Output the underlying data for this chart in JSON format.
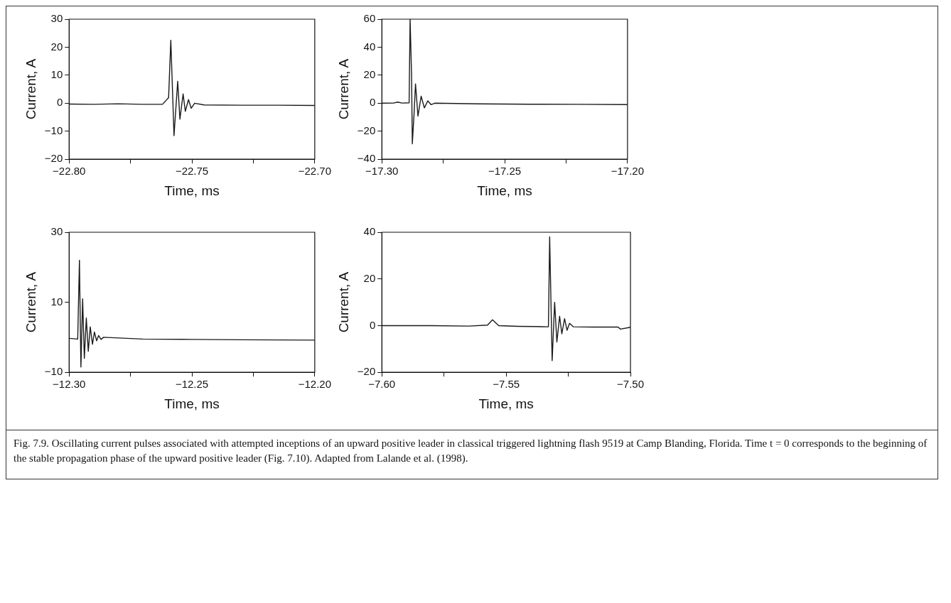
{
  "chart_data": [
    {
      "type": "line",
      "xlabel": "Time, ms",
      "ylabel": "Current, A",
      "color": "#1a1a1a",
      "grid": false,
      "xlim": [
        -22.8,
        -22.7
      ],
      "ylim": [
        -20,
        30
      ],
      "xticks": [
        {
          "value": -22.8,
          "label": "−22.80"
        },
        {
          "value": -22.775,
          "label": null
        },
        {
          "value": -22.75,
          "label": "−22.75"
        },
        {
          "value": -22.725,
          "label": null
        },
        {
          "value": -22.7,
          "label": "−22.70"
        }
      ],
      "yticks": [
        {
          "value": -20,
          "label": "−20"
        },
        {
          "value": -10,
          "label": "−10"
        },
        {
          "value": 0,
          "label": "0"
        },
        {
          "value": 10,
          "label": "10"
        },
        {
          "value": 20,
          "label": "20"
        },
        {
          "value": 30,
          "label": "30"
        }
      ],
      "x": [
        -22.8,
        -22.79,
        -22.78,
        -22.77,
        -22.762,
        -22.7595,
        -22.7586,
        -22.7573,
        -22.7558,
        -22.7549,
        -22.7536,
        -22.7527,
        -22.7514,
        -22.7503,
        -22.7489,
        -22.745,
        -22.73,
        -22.715,
        -22.7
      ],
      "values": [
        -0.3,
        -0.4,
        -0.2,
        -0.4,
        -0.4,
        2,
        22.5,
        -11.6,
        7.8,
        -5.7,
        3.3,
        -2.9,
        1.3,
        -1.8,
        0,
        -0.6,
        -0.7,
        -0.7,
        -0.8
      ],
      "annotations": [
        "Fig. 7.9. Oscillating current pulses associated with attempted inceptions of an upward positive leader in classical triggered lightning flash 9519 at Camp Blanding, Florida. Time t = 0 corresponds to the beginning of the stable propagation phase of the upward positive leader (Fig. 7.10). Adapted from Lalande et al. (1998)."
      ]
    },
    {
      "type": "line",
      "xlabel": "Time, ms",
      "ylabel": "Current, A",
      "color": "#1a1a1a",
      "grid": false,
      "xlim": [
        -17.3,
        -17.2
      ],
      "ylim": [
        -40,
        60
      ],
      "xticks": [
        {
          "value": -17.3,
          "label": "−17.30"
        },
        {
          "value": -17.275,
          "label": null
        },
        {
          "value": -17.25,
          "label": "−17.25"
        },
        {
          "value": -17.225,
          "label": null
        },
        {
          "value": -17.2,
          "label": "−17.20"
        }
      ],
      "yticks": [
        {
          "value": -40,
          "label": "−40"
        },
        {
          "value": -20,
          "label": "−20"
        },
        {
          "value": 0,
          "label": "0"
        },
        {
          "value": 20,
          "label": "20"
        },
        {
          "value": 40,
          "label": "40"
        },
        {
          "value": 60,
          "label": "60"
        }
      ],
      "x": [
        -17.3,
        -17.295,
        -17.2935,
        -17.2918,
        -17.2889,
        -17.2885,
        -17.2879,
        -17.2876,
        -17.2869,
        -17.2863,
        -17.2853,
        -17.284,
        -17.2827,
        -17.2813,
        -17.28,
        -17.2785,
        -17.26,
        -17.24,
        -17.22,
        -17.2
      ],
      "values": [
        0,
        0.2,
        0.8,
        0.1,
        0.3,
        60,
        20,
        -29,
        -8,
        13.8,
        -9.2,
        5,
        -3.3,
        1.7,
        -1,
        0,
        -0.5,
        -0.7,
        -0.8,
        -1
      ]
    },
    {
      "type": "line",
      "xlabel": "Time, ms",
      "ylabel": "Current, A",
      "color": "#1a1a1a",
      "grid": false,
      "xlim": [
        -12.3,
        -12.2
      ],
      "ylim": [
        -10,
        30
      ],
      "xticks": [
        {
          "value": -12.3,
          "label": "−12.30"
        },
        {
          "value": -12.275,
          "label": null
        },
        {
          "value": -12.25,
          "label": "−12.25"
        },
        {
          "value": -12.225,
          "label": null
        },
        {
          "value": -12.2,
          "label": "−12.20"
        }
      ],
      "yticks": [
        {
          "value": -10,
          "label": "−10"
        },
        {
          "value": 10,
          "label": "10"
        },
        {
          "value": 30,
          "label": "30"
        }
      ],
      "x": [
        -12.3,
        -12.2965,
        -12.2958,
        -12.2952,
        -12.2945,
        -12.2938,
        -12.293,
        -12.2922,
        -12.2914,
        -12.2905,
        -12.2897,
        -12.2888,
        -12.288,
        -12.287,
        -12.286,
        -12.27,
        -12.25,
        -12.23,
        -12.2
      ],
      "values": [
        -0.3,
        -0.5,
        22,
        -8.5,
        11,
        -6,
        5.5,
        -4,
        3,
        -2,
        1.5,
        -1,
        0.5,
        -0.6,
        0,
        -0.5,
        -0.6,
        -0.7,
        -0.8
      ]
    },
    {
      "type": "line",
      "xlabel": "Time, ms",
      "ylabel": "Current, A",
      "color": "#1a1a1a",
      "grid": false,
      "xlim": [
        -7.6,
        -7.5
      ],
      "ylim": [
        -20,
        40
      ],
      "xticks": [
        {
          "value": -7.6,
          "label": "−7.60"
        },
        {
          "value": -7.575,
          "label": null
        },
        {
          "value": -7.55,
          "label": "−7.55"
        },
        {
          "value": -7.525,
          "label": null
        },
        {
          "value": -7.5,
          "label": "−7.50"
        }
      ],
      "yticks": [
        {
          "value": -20,
          "label": "−20"
        },
        {
          "value": 0,
          "label": "0"
        },
        {
          "value": 20,
          "label": "20"
        },
        {
          "value": 40,
          "label": "40"
        }
      ],
      "x": [
        -7.6,
        -7.58,
        -7.565,
        -7.5575,
        -7.5555,
        -7.553,
        -7.545,
        -7.538,
        -7.533,
        -7.5325,
        -7.5315,
        -7.5305,
        -7.5296,
        -7.5285,
        -7.5276,
        -7.5265,
        -7.5255,
        -7.5245,
        -7.523,
        -7.515,
        -7.505,
        -7.504,
        -7.5
      ],
      "values": [
        0,
        0,
        -0.2,
        0.2,
        2.5,
        0,
        -0.3,
        -0.4,
        -0.5,
        38,
        -15,
        10,
        -7,
        4,
        -3.5,
        3,
        -2,
        1,
        -0.5,
        -0.6,
        -0.6,
        -1.5,
        -0.7
      ]
    }
  ]
}
